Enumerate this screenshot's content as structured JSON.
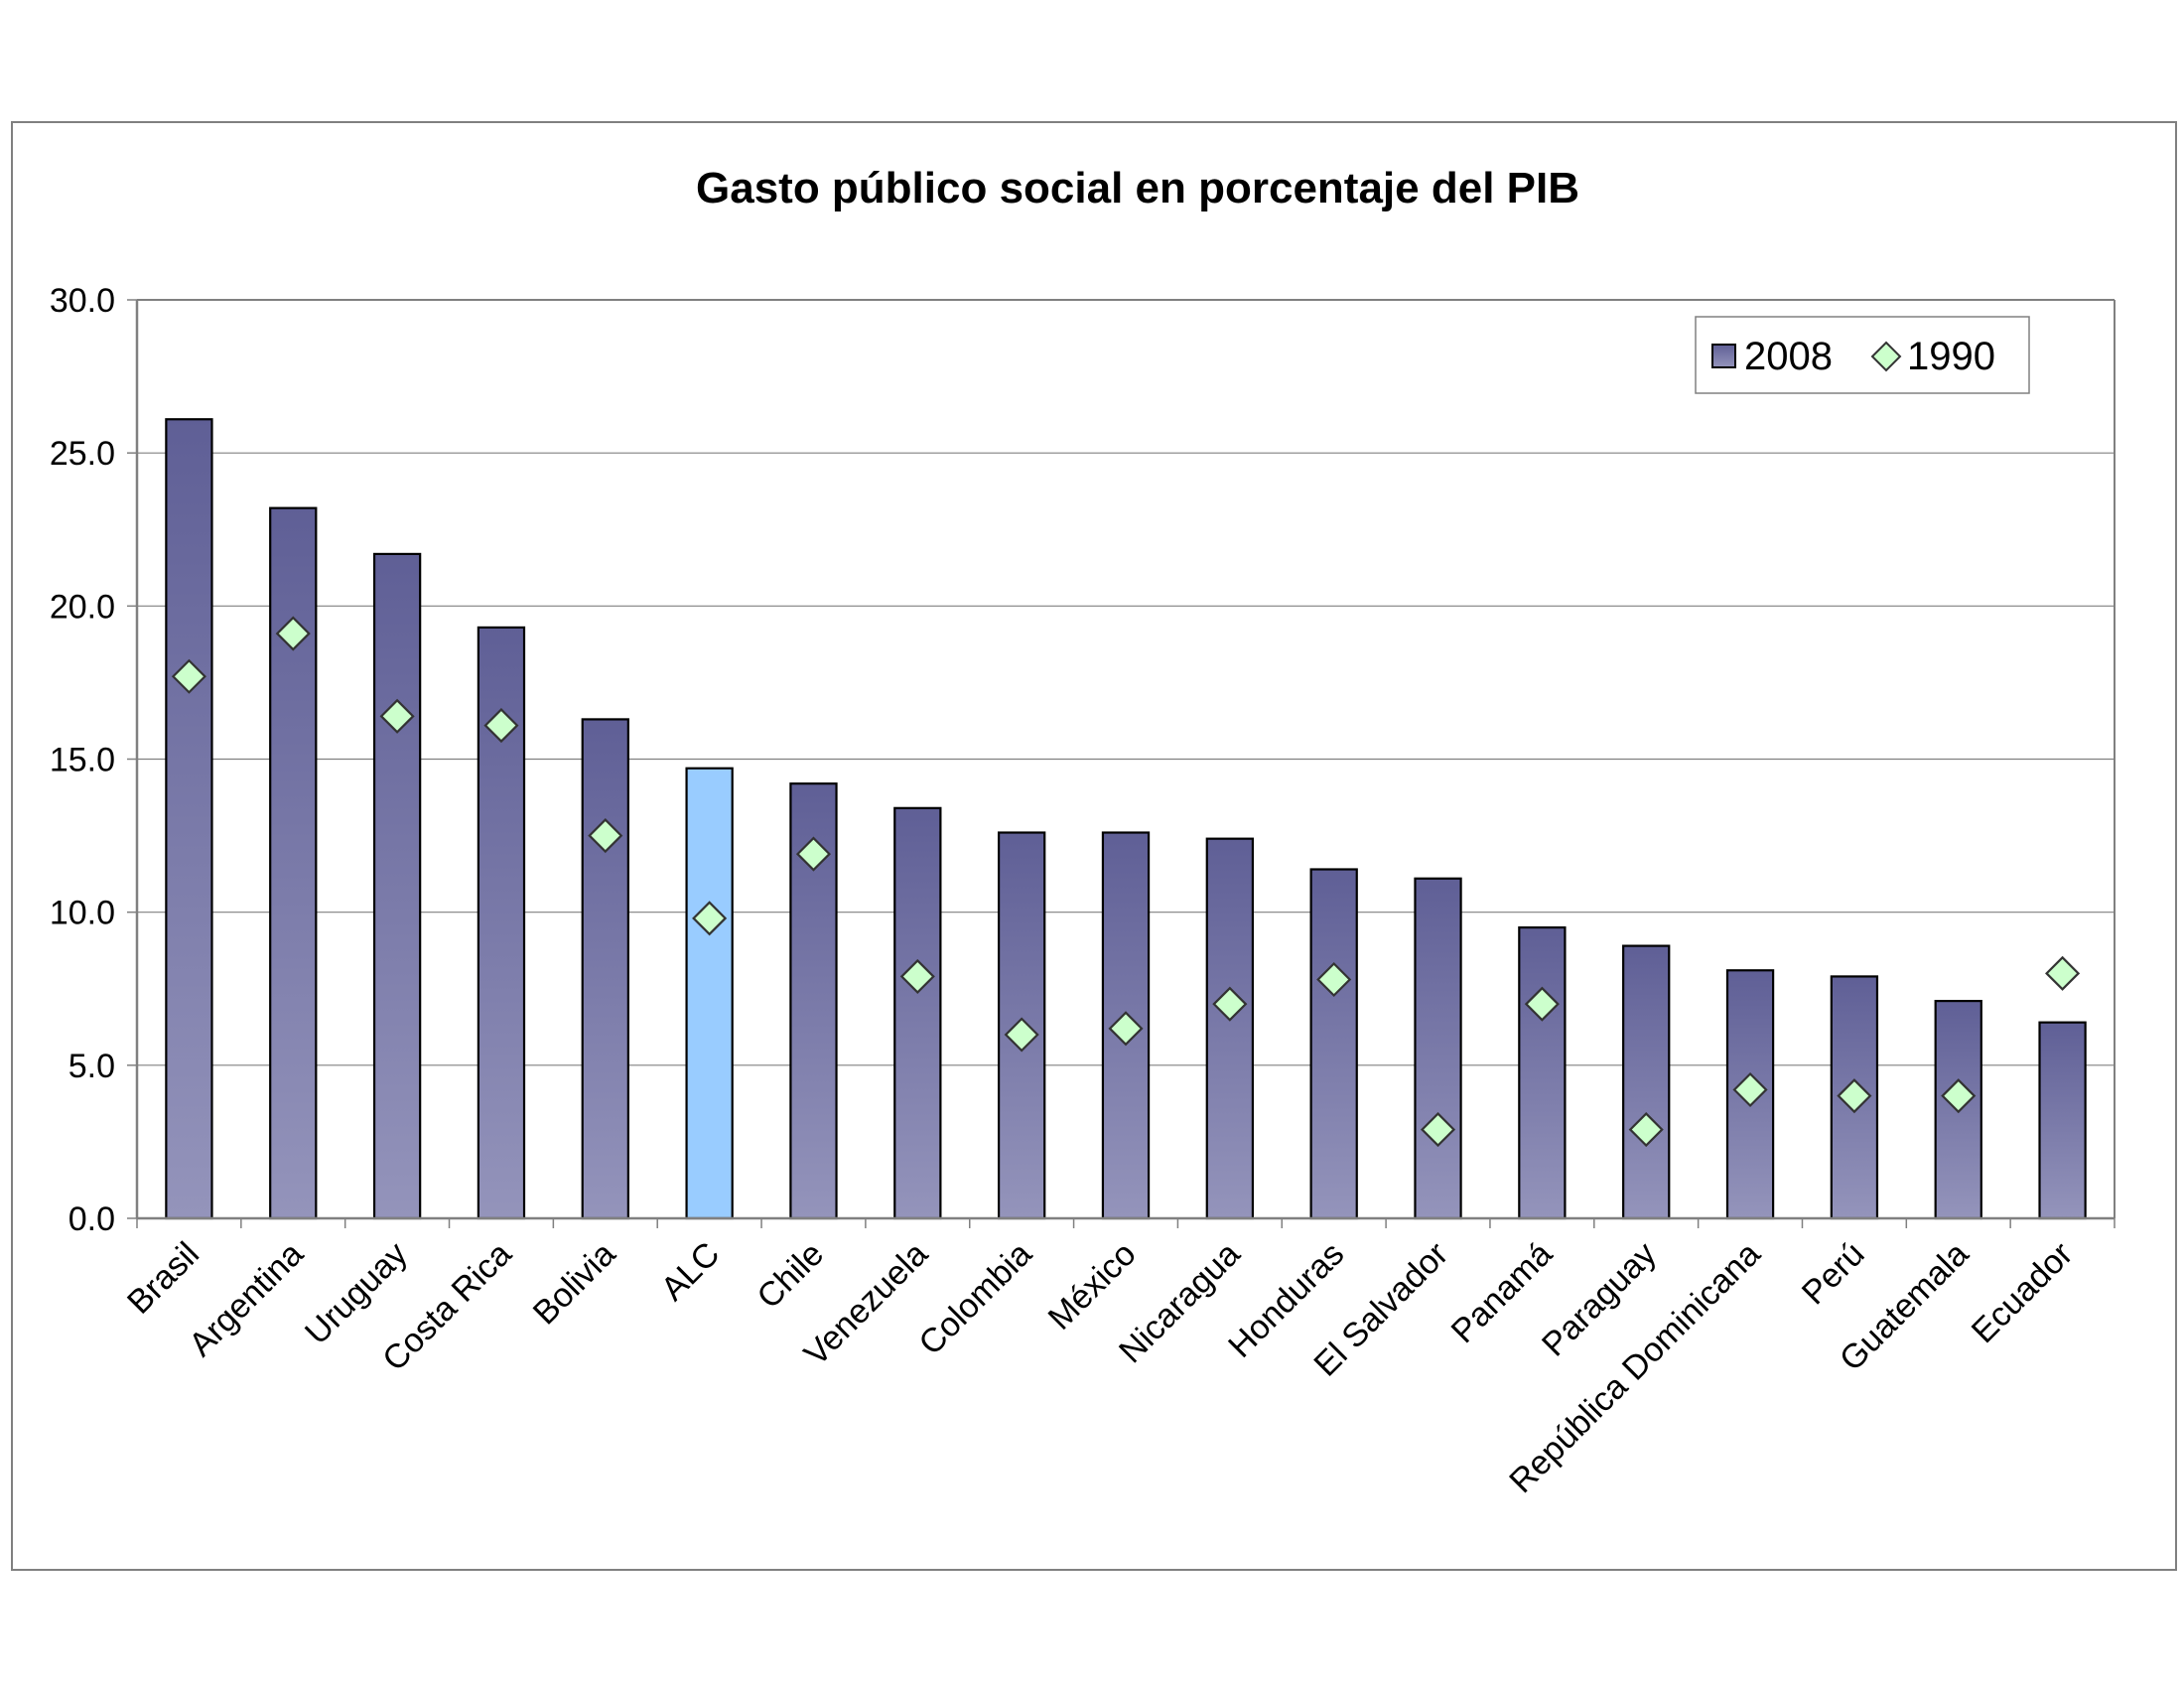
{
  "chart_data": {
    "type": "bar",
    "title": "Gasto público social en porcentaje del PIB",
    "xlabel": "",
    "ylabel": "",
    "ylim": [
      0,
      30
    ],
    "yticks": [
      "0.0",
      "5.0",
      "10.0",
      "15.0",
      "20.0",
      "25.0",
      "30.0"
    ],
    "grid": true,
    "legend_position": "top-right",
    "categories": [
      "Brasil",
      "Argentina",
      "Uruguay",
      "Costa Rica",
      "Bolivia",
      "ALC",
      "Chile",
      "Venezuela",
      "Colombia",
      "México",
      "Nicaragua",
      "Honduras",
      "El Salvador",
      "Panamá",
      "Paraguay",
      "República Dominicana",
      "Perú",
      "Guatemala",
      "Ecuador"
    ],
    "highlight_category": "ALC",
    "series": [
      {
        "name": "2008",
        "kind": "bar",
        "color": "#6e6e9e",
        "highlight_color": "#99ccff",
        "values": [
          26.1,
          23.2,
          21.7,
          19.3,
          16.3,
          14.7,
          14.2,
          13.4,
          12.6,
          12.6,
          12.4,
          11.4,
          11.1,
          9.5,
          8.9,
          8.1,
          7.9,
          7.1,
          6.4
        ]
      },
      {
        "name": "1990",
        "kind": "marker",
        "color": "#ccffcc",
        "values": [
          17.7,
          19.1,
          16.4,
          16.1,
          12.5,
          9.8,
          11.9,
          7.9,
          6.0,
          6.2,
          7.0,
          7.8,
          2.9,
          7.0,
          2.9,
          4.2,
          4.0,
          4.0,
          8.0
        ]
      }
    ]
  }
}
